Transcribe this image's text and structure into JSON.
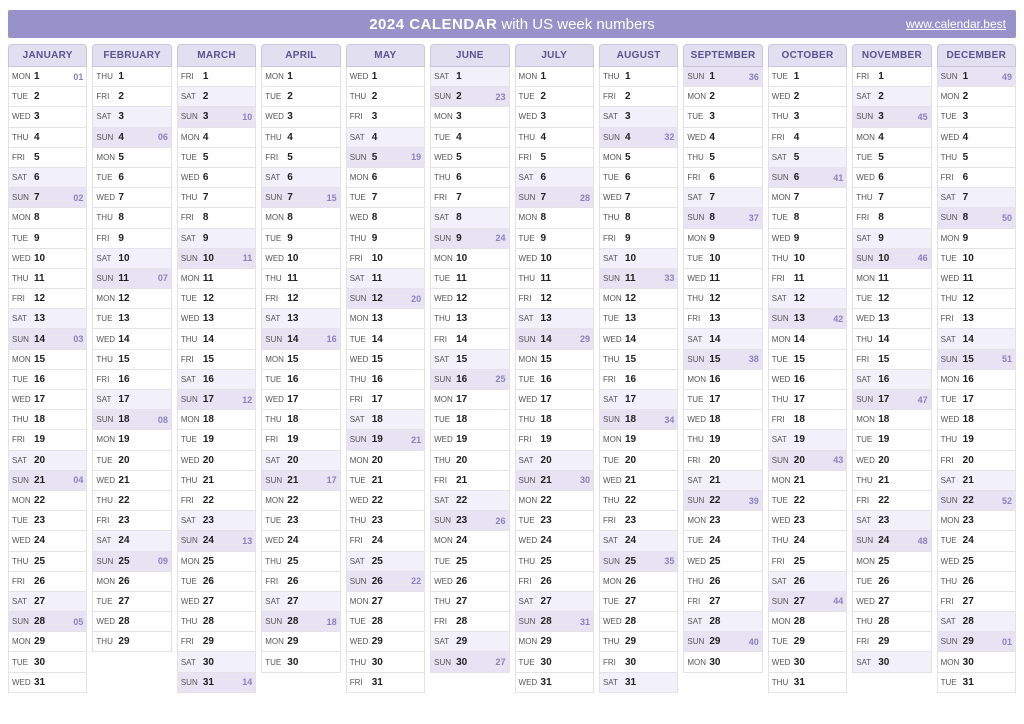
{
  "header": {
    "title_bold": "2024 CALENDAR",
    "title_rest": "with US week numbers",
    "link_text": "www.calendar.best"
  },
  "colors": {
    "header_bg": "#9991c9",
    "month_head_bg": "#e2dff0",
    "month_head_fg": "#5a5390",
    "sat_bg": "#f2f0f9",
    "sun_bg": "#e7e3f3",
    "week_num_fg": "#8a82bd",
    "border": "#e2e2e8"
  },
  "dow_labels": [
    "SUN",
    "MON",
    "TUE",
    "WED",
    "THU",
    "FRI",
    "SAT"
  ],
  "months": [
    {
      "name": "JANUARY",
      "days": 31,
      "first_dow": 1,
      "week_of_first_sunday": 2
    },
    {
      "name": "FEBRUARY",
      "days": 29,
      "first_dow": 4,
      "week_of_first_sunday": 6
    },
    {
      "name": "MARCH",
      "days": 31,
      "first_dow": 5,
      "week_of_first_sunday": 10
    },
    {
      "name": "APRIL",
      "days": 30,
      "first_dow": 1,
      "week_of_first_sunday": 15
    },
    {
      "name": "MAY",
      "days": 31,
      "first_dow": 3,
      "week_of_first_sunday": 19
    },
    {
      "name": "JUNE",
      "days": 30,
      "first_dow": 6,
      "week_of_first_sunday": 23
    },
    {
      "name": "JULY",
      "days": 31,
      "first_dow": 1,
      "week_of_first_sunday": 28
    },
    {
      "name": "AUGUST",
      "days": 31,
      "first_dow": 4,
      "week_of_first_sunday": 32
    },
    {
      "name": "SEPTEMBER",
      "days": 30,
      "first_dow": 0,
      "week_of_first_sunday": 36
    },
    {
      "name": "OCTOBER",
      "days": 31,
      "first_dow": 2,
      "week_of_first_sunday": 41
    },
    {
      "name": "NOVEMBER",
      "days": 30,
      "first_dow": 5,
      "week_of_first_sunday": 45
    },
    {
      "name": "DECEMBER",
      "days": 31,
      "first_dow": 0,
      "week_of_first_sunday": 49
    }
  ],
  "week_overflow_after": 52,
  "special_weeks": {
    "JANUARY": {
      "1": "01"
    }
  }
}
